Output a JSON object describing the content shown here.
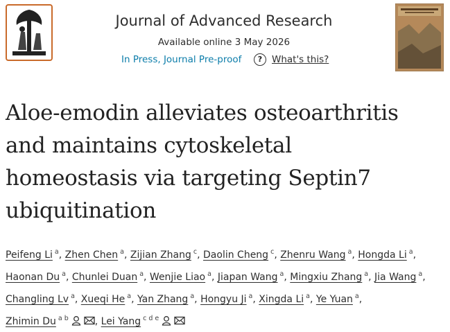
{
  "header": {
    "journal": "Journal of Advanced Research",
    "available": "Available online 3 May 2026",
    "status": "In Press, Journal Pre-proof",
    "whats_this": "What's this?",
    "help_icon": "?"
  },
  "article": {
    "title_lines": [
      "Aloe-emodin alleviates osteoarthritis",
      "and maintains cytoskeletal",
      "homeostasis via targeting Septin7",
      "ubiquitination"
    ]
  },
  "author_separator": ",",
  "authors": [
    {
      "name": "Peifeng Li",
      "affiliations": "a"
    },
    {
      "name": "Zhen Chen",
      "affiliations": "a"
    },
    {
      "name": "Zijian Zhang",
      "affiliations": "c"
    },
    {
      "name": "Daolin Cheng",
      "affiliations": "c"
    },
    {
      "name": "Zhenru Wang",
      "affiliations": "a"
    },
    {
      "name": "Hongda Li",
      "affiliations": "a"
    },
    {
      "name": "Haonan Du",
      "affiliations": "a"
    },
    {
      "name": "Chunlei Duan",
      "affiliations": "a"
    },
    {
      "name": "Wenjie Liao",
      "affiliations": "a"
    },
    {
      "name": "Jiapan Wang",
      "affiliations": "a"
    },
    {
      "name": "Mingxiu Zhang",
      "affiliations": "a"
    },
    {
      "name": "Jia Wang",
      "affiliations": "a"
    },
    {
      "name": "Changling Lv",
      "affiliations": "a"
    },
    {
      "name": "Xueqi He",
      "affiliations": "a"
    },
    {
      "name": "Yan Zhang",
      "affiliations": "a"
    },
    {
      "name": "Hongyu Ji",
      "affiliations": "a"
    },
    {
      "name": "Xingda Li",
      "affiliations": "a"
    },
    {
      "name": "Ye Yuan",
      "affiliations": "a"
    },
    {
      "name": "Zhimin Du",
      "affiliations": "a b",
      "corresponding": true
    },
    {
      "name": "Lei Yang",
      "affiliations": "c d e",
      "corresponding": true
    }
  ]
}
